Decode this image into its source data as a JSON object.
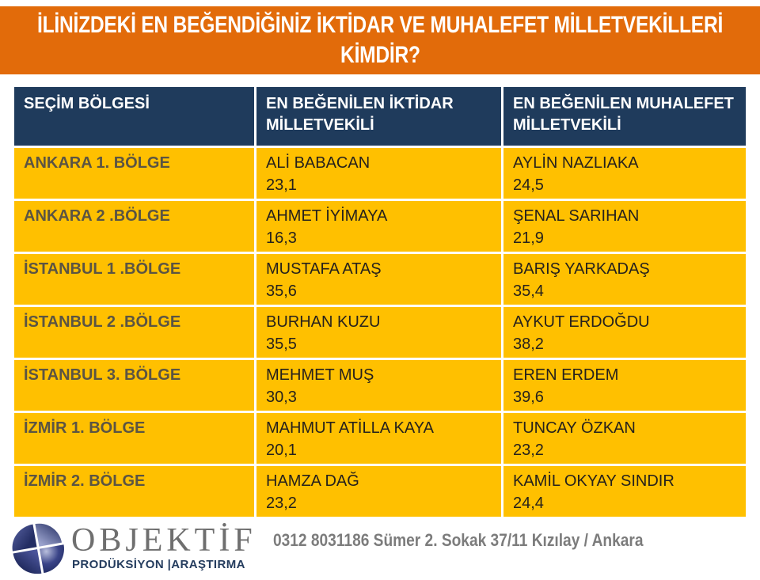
{
  "title": {
    "line1": "İLİNİZDEKİ EN BEĞENDİĞİNİZ İKTİDAR VE MUHALEFET MİLLETVEKİLLERİ",
    "line2": "KİMDİR?"
  },
  "table": {
    "headers": [
      "SEÇİM BÖLGESİ",
      "EN BEĞENİLEN İKTİDAR MİLLETVEKİLİ",
      "EN BEĞENİLEN MUHALEFET MİLLETVEKİLİ"
    ],
    "rows": [
      {
        "region": "ANKARA 1. BÖLGE",
        "iktidar_name": "ALİ BABACAN",
        "iktidar_value": "23,1",
        "muhalefet_name": "AYLİN NAZLIAKA",
        "muhalefet_value": "24,5"
      },
      {
        "region": "ANKARA 2 .BÖLGE",
        "iktidar_name": "AHMET İYİMAYA",
        "iktidar_value": "16,3",
        "muhalefet_name": "ŞENAL SARIHAN",
        "muhalefet_value": "21,9"
      },
      {
        "region": "İSTANBUL 1 .BÖLGE",
        "iktidar_name": "MUSTAFA ATAŞ",
        "iktidar_value": "35,6",
        "muhalefet_name": "BARIŞ YARKADAŞ",
        "muhalefet_value": "35,4"
      },
      {
        "region": "İSTANBUL 2 .BÖLGE",
        "iktidar_name": "BURHAN KUZU",
        "iktidar_value": "35,5",
        "muhalefet_name": "AYKUT ERDOĞDU",
        "muhalefet_value": "38,2"
      },
      {
        "region": "İSTANBUL 3. BÖLGE",
        "iktidar_name": "MEHMET MUŞ",
        "iktidar_value": "30,3",
        "muhalefet_name": "EREN ERDEM",
        "muhalefet_value": "39,6"
      },
      {
        "region": "İZMİR 1. BÖLGE",
        "iktidar_name": "MAHMUT ATİLLA KAYA",
        "iktidar_value": "20,1",
        "muhalefet_name": "TUNCAY ÖZKAN",
        "muhalefet_value": "23,2"
      },
      {
        "region": "İZMİR 2. BÖLGE",
        "iktidar_name": "HAMZA DAĞ",
        "iktidar_value": "23,2",
        "muhalefet_name": "KAMİL OKYAY SINDIR",
        "muhalefet_value": "24,4"
      }
    ]
  },
  "footer": {
    "logo_title": "OBJEKTİF",
    "logo_subtitle": "PRODÜKSİYON |ARAŞTIRMA",
    "contact": "0312 8031186 Sümer 2. Sokak 37/11 Kızılay / Ankara"
  },
  "colors": {
    "banner_orange": "#E26B0A",
    "row_yellow": "#FFC000",
    "header_navy": "#1F3B5C",
    "region_text": "#5B5443",
    "body_text": "#26211C",
    "contact_gray": "#7C7C7C"
  }
}
